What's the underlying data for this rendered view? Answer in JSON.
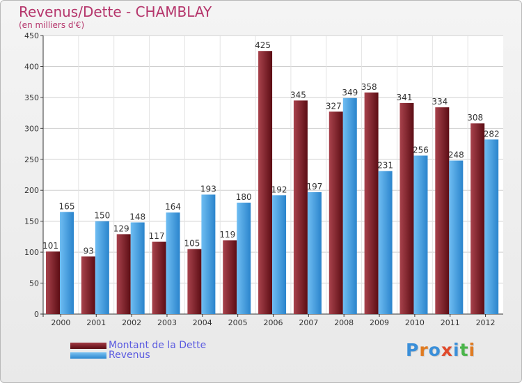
{
  "chart_data": {
    "type": "bar",
    "title": "Revenus/Dette - CHAMBLAY",
    "subtitle": "(en milliers d'€)",
    "xlabel": "",
    "ylabel": "",
    "ylim": [
      0,
      450
    ],
    "yticks": [
      0,
      50,
      100,
      150,
      200,
      250,
      300,
      350,
      400,
      450
    ],
    "grid": true,
    "legend_position": "bottom-left",
    "categories": [
      "2000",
      "2001",
      "2002",
      "2003",
      "2004",
      "2005",
      "2006",
      "2007",
      "2008",
      "2009",
      "2010",
      "2011",
      "2012"
    ],
    "series": [
      {
        "name": "Montant de la Dette",
        "color": "#7a1a22",
        "values": [
          101,
          93,
          129,
          117,
          105,
          119,
          425,
          345,
          327,
          358,
          341,
          334,
          308
        ]
      },
      {
        "name": "Revenus",
        "color": "#3d9fe3",
        "values": [
          165,
          150,
          148,
          164,
          193,
          180,
          192,
          197,
          349,
          231,
          256,
          248,
          282
        ]
      }
    ]
  },
  "logo": {
    "text": "Proxiti",
    "letter_colors": [
      "#3a8fd9",
      "#e07b21",
      "#3a8fd9",
      "#e04a2c",
      "#3a8fd9",
      "#4ab54a",
      "#e07b21"
    ]
  }
}
